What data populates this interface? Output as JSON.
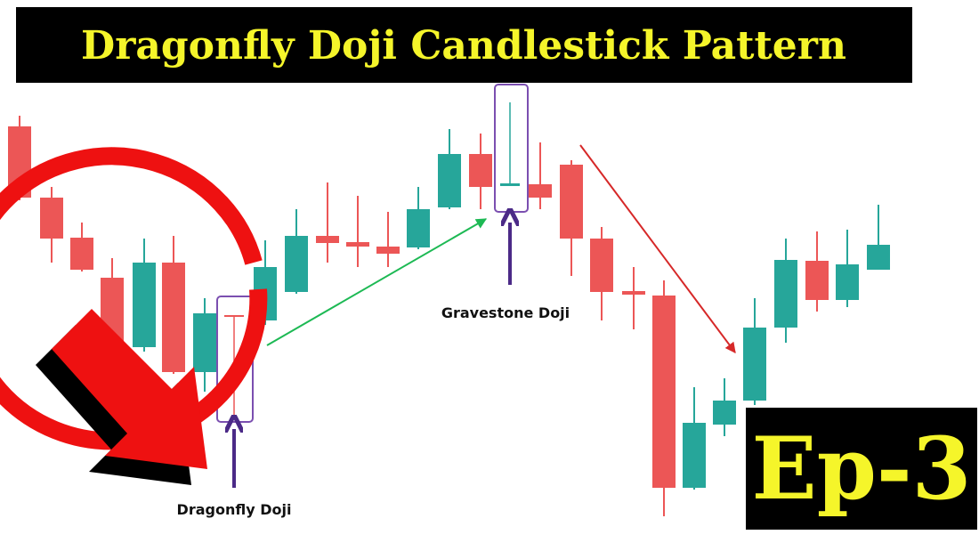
{
  "header": {
    "title": "Dragonfly Doji Candlestick Pattern"
  },
  "labels": {
    "gravestone": "Gravestone Doji",
    "dragonfly": "Dragonfly Doji"
  },
  "badge": {
    "text": "Ep-3"
  }
}
